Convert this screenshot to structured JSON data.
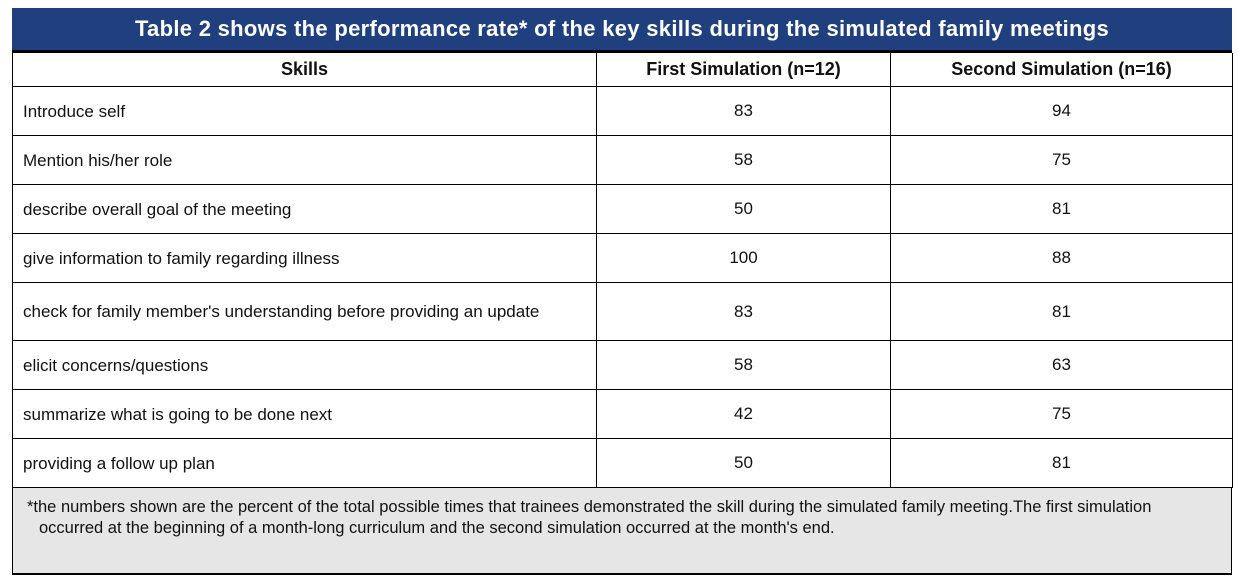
{
  "table": {
    "title": "Table 2 shows the performance rate* of the key skills during the simulated family meetings",
    "headers": [
      "Skills",
      "First Simulation (n=12)",
      "Second Simulation (n=16)"
    ],
    "rows": [
      {
        "skill": "Introduce self",
        "first": "83",
        "second": "94"
      },
      {
        "skill": "Mention his/her role",
        "first": "58",
        "second": "75"
      },
      {
        "skill": "describe overall goal of the meeting",
        "first": "50",
        "second": "81"
      },
      {
        "skill": "give information to family regarding illness",
        "first": "100",
        "second": "88"
      },
      {
        "skill": "check for family member's understanding before providing an update",
        "first": "83",
        "second": "81"
      },
      {
        "skill": "elicit concerns/questions",
        "first": "58",
        "second": "63"
      },
      {
        "skill": "summarize what is going to be done next",
        "first": "42",
        "second": "75"
      },
      {
        "skill": "providing a follow up plan",
        "first": "50",
        "second": "81"
      }
    ],
    "footnote": "*the numbers shown are the percent of the total possible times that trainees demonstrated the skill during the simulated family meeting.The first simulation occurred at the beginning of a month-long curriculum and the second simulation occurred at the month's end."
  }
}
